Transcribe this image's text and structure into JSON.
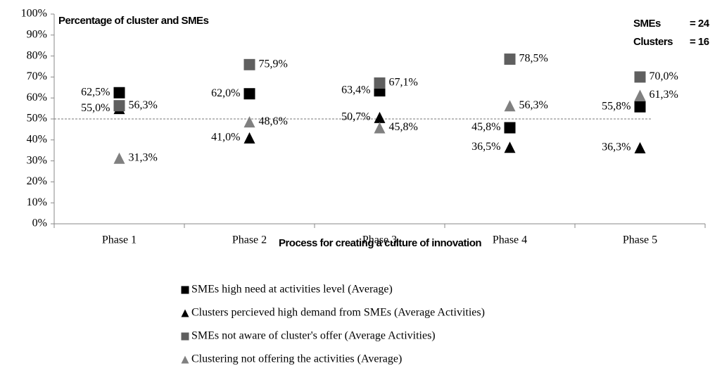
{
  "chart_data": {
    "type": "scatter",
    "title": "Percentage of cluster and SMEs",
    "x_label": "Process for creating a culture of innovation",
    "annotations": [
      {
        "label": "SMEs",
        "value": "= 24"
      },
      {
        "label": "Clusters",
        "value": "= 16"
      }
    ],
    "categories": [
      "Phase 1",
      "Phase 2",
      "Phase 3",
      "Phase 4",
      "Phase 5"
    ],
    "series": [
      {
        "name": "SMEs high need at activities level (Average)",
        "color": "#000000",
        "marker": "square",
        "values": [
          62.5,
          62.0,
          63.4,
          45.8,
          55.8
        ],
        "value_labels": [
          "62,5%",
          "62,0%",
          "63,4%",
          "45,8%",
          "55,8%"
        ]
      },
      {
        "name": "Clusters percieved high demand from SMEs (Average Activities)",
        "color": "#000000",
        "marker": "triangle",
        "values": [
          55.0,
          41.0,
          50.7,
          36.5,
          36.3
        ],
        "value_labels": [
          "55,0%",
          "41,0%",
          "50,7%",
          "36,5%",
          "36,3%"
        ]
      },
      {
        "name": "SMEs not aware of cluster's offer (Average Activities)",
        "color": "#5f5f5f",
        "marker": "square",
        "values": [
          56.3,
          75.9,
          67.1,
          78.5,
          70.0
        ],
        "value_labels": [
          "56,3%",
          "75,9%",
          "67,1%",
          "78,5%",
          "70,0%"
        ]
      },
      {
        "name": "Clustering not offering the activities (Average)",
        "color": "#808080",
        "marker": "triangle",
        "values": [
          31.3,
          48.6,
          45.8,
          56.3,
          61.3
        ],
        "value_labels": [
          "31,3%",
          "48,6%",
          "45,8%",
          "56,3%",
          "61,3%"
        ]
      }
    ],
    "reference_line": 50,
    "ylim": [
      0,
      100
    ],
    "yticks": [
      {
        "value": 0,
        "label": "0%"
      },
      {
        "value": 10,
        "label": "10%"
      },
      {
        "value": 20,
        "label": "20%"
      },
      {
        "value": 30,
        "label": "30%"
      },
      {
        "value": 40,
        "label": "40%"
      },
      {
        "value": 50,
        "label": "50%"
      },
      {
        "value": 60,
        "label": "60%"
      },
      {
        "value": 70,
        "label": "70%"
      },
      {
        "value": 80,
        "label": "80%"
      },
      {
        "value": 90,
        "label": "90%"
      },
      {
        "value": 100,
        "label": "100%"
      }
    ],
    "grid": false
  }
}
